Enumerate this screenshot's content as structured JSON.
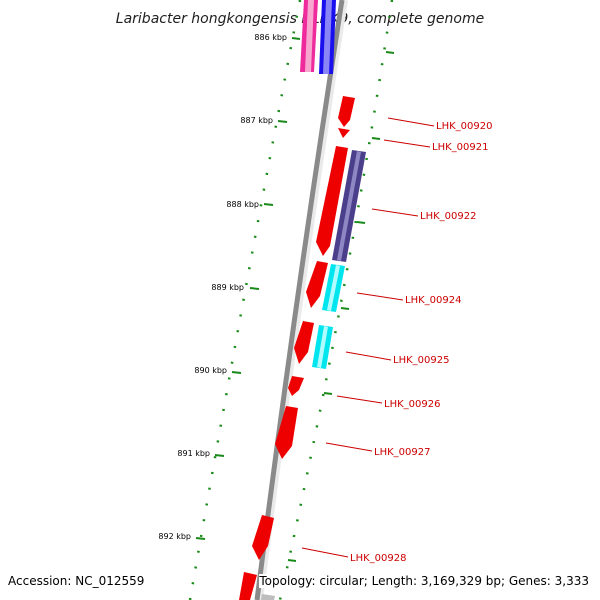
{
  "title": "Laribacter hongkongensis HLHK9, complete genome",
  "footer": {
    "accession": "Accession: NC_012559",
    "topology": "Topology: circular; Length: 3,169,329 bp; Genes: 3,333"
  },
  "colors": {
    "backbone": "#8a8a8a",
    "tick": "#1a8a1a",
    "gene_forward": "#ee0000",
    "feature_purple": "#4b3f8c",
    "feature_cyan": "#00e5ee",
    "feature_magenta": "#ee2a9c",
    "feature_blue": "#1a10ee",
    "label_text": "#cc0000"
  },
  "kbp_labels": [
    "886 kbp",
    "887 kbp",
    "888 kbp",
    "889 kbp",
    "890 kbp",
    "891 kbp",
    "892 kbp"
  ],
  "gene_labels": [
    "LHK_00920",
    "LHK_00921",
    "LHK_00922",
    "LHK_00924",
    "LHK_00925",
    "LHK_00926",
    "LHK_00927",
    "LHK_00928"
  ]
}
